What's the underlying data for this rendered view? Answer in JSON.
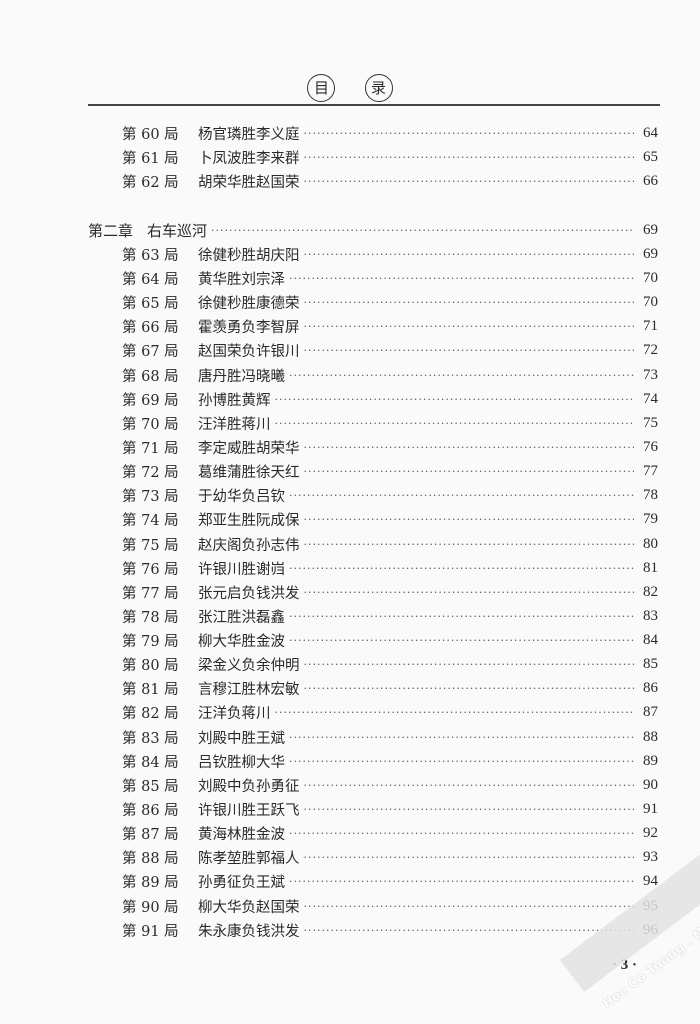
{
  "header": {
    "title_chars": [
      "目",
      "录"
    ]
  },
  "chapter": {
    "label": "第二章",
    "title": "右车巡河",
    "page": "69"
  },
  "games_before": [
    {
      "label": "第 60 局",
      "title": "杨官璘胜李义庭",
      "page": "64"
    },
    {
      "label": "第 61 局",
      "title": "卜凤波胜李来群",
      "page": "65"
    },
    {
      "label": "第 62 局",
      "title": "胡荣华胜赵国荣",
      "page": "66"
    }
  ],
  "games": [
    {
      "label": "第 63 局",
      "title": "徐健秒胜胡庆阳",
      "page": "69"
    },
    {
      "label": "第 64 局",
      "title": "黄华胜刘宗泽",
      "page": "70"
    },
    {
      "label": "第 65 局",
      "title": "徐健秒胜康德荣",
      "page": "70"
    },
    {
      "label": "第 66 局",
      "title": "霍羡勇负李智屏",
      "page": "71"
    },
    {
      "label": "第 67 局",
      "title": "赵国荣负许银川",
      "page": "72"
    },
    {
      "label": "第 68 局",
      "title": "唐丹胜冯晓曦",
      "page": "73"
    },
    {
      "label": "第 69 局",
      "title": "孙博胜黄辉",
      "page": "74"
    },
    {
      "label": "第 70 局",
      "title": "汪洋胜蒋川",
      "page": "75"
    },
    {
      "label": "第 71 局",
      "title": "李定威胜胡荣华",
      "page": "76"
    },
    {
      "label": "第 72 局",
      "title": "葛维蒲胜徐天红",
      "page": "77"
    },
    {
      "label": "第 73 局",
      "title": "于幼华负吕钦",
      "page": "78"
    },
    {
      "label": "第 74 局",
      "title": "郑亚生胜阮成保",
      "page": "79"
    },
    {
      "label": "第 75 局",
      "title": "赵庆阁负孙志伟",
      "page": "80"
    },
    {
      "label": "第 76 局",
      "title": "许银川胜谢岿",
      "page": "81"
    },
    {
      "label": "第 77 局",
      "title": "张元启负钱洪发",
      "page": "82"
    },
    {
      "label": "第 78 局",
      "title": "张江胜洪磊鑫",
      "page": "83"
    },
    {
      "label": "第 79 局",
      "title": "柳大华胜金波",
      "page": "84"
    },
    {
      "label": "第 80 局",
      "title": "梁金义负余仲明",
      "page": "85"
    },
    {
      "label": "第 81 局",
      "title": "言穆江胜林宏敏",
      "page": "86"
    },
    {
      "label": "第 82 局",
      "title": "汪洋负蒋川",
      "page": "87"
    },
    {
      "label": "第 83 局",
      "title": "刘殿中胜王斌",
      "page": "88"
    },
    {
      "label": "第 84 局",
      "title": "吕钦胜柳大华",
      "page": "89"
    },
    {
      "label": "第 85 局",
      "title": "刘殿中负孙勇征",
      "page": "90"
    },
    {
      "label": "第 86 局",
      "title": "许银川胜王跃飞",
      "page": "91"
    },
    {
      "label": "第 87 局",
      "title": "黄海林胜金波",
      "page": "92"
    },
    {
      "label": "第 88 局",
      "title": "陈孝堃胜郭福人",
      "page": "93"
    },
    {
      "label": "第 89 局",
      "title": "孙勇征负王斌",
      "page": "94"
    },
    {
      "label": "第 90 局",
      "title": "柳大华负赵国荣",
      "page": "95"
    },
    {
      "label": "第 91 局",
      "title": "朱永康负钱洪发",
      "page": "96"
    }
  ],
  "footer": {
    "page_number": "· 3 ·"
  },
  "watermark": "Hoc Co Tuong . Net"
}
